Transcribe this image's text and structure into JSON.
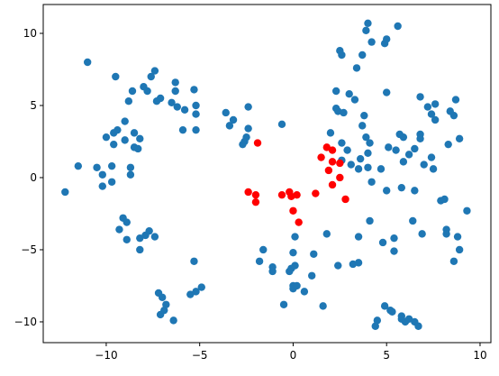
{
  "chart_data": {
    "type": "scatter",
    "xlim": [
      -13.37,
      10.58
    ],
    "ylim": [
      -11.44,
      12
    ],
    "xticks": [
      {
        "value": -10,
        "label": "−10"
      },
      {
        "value": -5,
        "label": "−5"
      },
      0,
      5,
      10
    ],
    "yticks": [
      {
        "value": -10,
        "label": "−10"
      },
      {
        "value": -5,
        "label": "−5"
      },
      0,
      5,
      10
    ],
    "series": [
      {
        "color": "#1f77b4",
        "x": [
          -12.2,
          -11.5,
          -11,
          -10.5,
          -10.2,
          -10.2,
          -10,
          -9.7,
          -9.7,
          -9.6,
          -9.6,
          -9.5,
          -9.4,
          -9.3,
          -9.1,
          -9,
          -9,
          -8.9,
          -8.9,
          -8.8,
          -8.7,
          -8.7,
          -8.6,
          -8.5,
          -8.5,
          -8.3,
          -8.2,
          -8.2,
          -8.2,
          -8,
          -7.9,
          -7.8,
          -7.7,
          -7.6,
          -7.4,
          -7.4,
          -7.3,
          -7.1,
          -7.2,
          -7,
          -7.1,
          -6.9,
          -6.8,
          -6.5,
          -6.3,
          -6.3,
          -6.4,
          -6.2,
          -5.9,
          -5.8,
          -5.5,
          -5.3,
          -5.2,
          -5.2,
          -5.2,
          -5.3,
          -5.2,
          -4.9,
          -3.6,
          -3.4,
          -3.2,
          -2.7,
          -2.6,
          -2.4,
          -2.4,
          -2.5,
          -1.8,
          -1.6,
          -1.1,
          -1.1,
          -0.6,
          -0.5,
          -0.2,
          -0.1,
          0,
          0,
          0,
          0.1,
          0.1,
          0.2,
          0.6,
          1,
          1.1,
          1.6,
          1.8,
          2,
          2.3,
          2.3,
          2.4,
          2.4,
          2.5,
          2.6,
          2.6,
          2.6,
          2.7,
          2.9,
          3,
          3.1,
          3.2,
          3.3,
          3.4,
          3.5,
          3.5,
          3.5,
          3.6,
          3.7,
          3.7,
          3.8,
          3.9,
          3.9,
          4,
          4,
          4,
          4.1,
          4.1,
          4.2,
          4.2,
          4.7,
          4.8,
          4.9,
          4.9,
          5,
          5,
          5,
          5.1,
          5.2,
          5.3,
          5.4,
          5.4,
          5.5,
          5.6,
          5.7,
          5.8,
          5.8,
          5.9,
          5.9,
          6,
          6.2,
          6.2,
          6.4,
          6.5,
          6.5,
          6.5,
          6.7,
          6.8,
          6.8,
          6.8,
          6.9,
          7,
          7.2,
          7.4,
          7.4,
          7.5,
          7.6,
          7.6,
          7.9,
          8.1,
          8.2,
          8.2,
          8.3,
          8.4,
          8.6,
          8.6,
          8.7,
          8.8,
          8.9,
          8.9,
          9.3,
          5.8,
          4.5,
          4.4
        ],
        "y": [
          -1,
          0.8,
          8,
          0.7,
          -0.6,
          0.2,
          2.8,
          -0.3,
          0.8,
          2.3,
          3.1,
          7,
          3.3,
          -3.6,
          -2.8,
          2.6,
          3.9,
          -3.1,
          -4.3,
          5.3,
          0.7,
          0.2,
          6,
          2.1,
          3.1,
          2,
          2.7,
          -5,
          -4.2,
          6.3,
          -4,
          6,
          -3.7,
          7,
          -4.1,
          7.4,
          5.3,
          5.5,
          -8,
          -8.3,
          -9.5,
          -9.2,
          -8.8,
          5.2,
          6.6,
          6,
          -9.9,
          4.9,
          3.3,
          4.7,
          -8.1,
          6.1,
          5,
          4.4,
          3.3,
          -5.8,
          -7.9,
          -7.6,
          4.5,
          3.6,
          4,
          2.3,
          2.5,
          3.4,
          4.9,
          2.8,
          -5.8,
          -5,
          -6.5,
          -6.2,
          3.7,
          -8.8,
          -6.5,
          -6.3,
          -5.2,
          -7.5,
          -7.7,
          -6.1,
          -4.1,
          -7.5,
          -7.9,
          -6.8,
          -5.3,
          -8.9,
          -3.9,
          3.1,
          4.8,
          6,
          4.6,
          -6.1,
          8.8,
          8.5,
          1.2,
          2.4,
          4.5,
          1.9,
          5.8,
          0.9,
          -6,
          5.4,
          7.6,
          -5.9,
          -4.1,
          0.6,
          1.3,
          3.6,
          8.5,
          4.3,
          2.8,
          10.2,
          10.7,
          1.7,
          0.7,
          2.4,
          -3,
          9.4,
          -0.3,
          0.6,
          -4.5,
          -8.9,
          9.3,
          -0.9,
          5.9,
          9.6,
          2.1,
          -9.2,
          -9.3,
          -4.2,
          -5.1,
          1.9,
          10.5,
          3,
          -0.7,
          -9.8,
          1.1,
          2.8,
          -10,
          -9.8,
          1.6,
          -3,
          2,
          -0.9,
          -10,
          -10.3,
          3,
          2.7,
          5.6,
          -3.9,
          0.9,
          4.9,
          4.4,
          1.4,
          0.6,
          5.1,
          4,
          -1.6,
          -1.5,
          -3.9,
          -3.6,
          2.3,
          4.6,
          4.3,
          -5.8,
          5.4,
          -4.1,
          -5,
          2.7,
          -2.3,
          -9.6,
          -9.9,
          -10.3
        ]
      },
      {
        "color": "#ff0000",
        "x": [
          -2.4,
          -2,
          -2,
          -1.9,
          -0.6,
          -0.2,
          -0.1,
          0,
          0.2,
          0.3,
          1.2,
          1.5,
          1.8,
          1.9,
          2.1,
          2.1,
          2.1,
          2.5,
          2.5,
          2.8
        ],
        "y": [
          -1,
          -1.2,
          -1.7,
          2.4,
          -1.2,
          -1,
          -1.3,
          -2.3,
          -1.2,
          -3.1,
          -1.1,
          1.4,
          2.1,
          0.5,
          1.9,
          1.1,
          -0.5,
          1,
          0,
          -1.5
        ]
      }
    ]
  }
}
